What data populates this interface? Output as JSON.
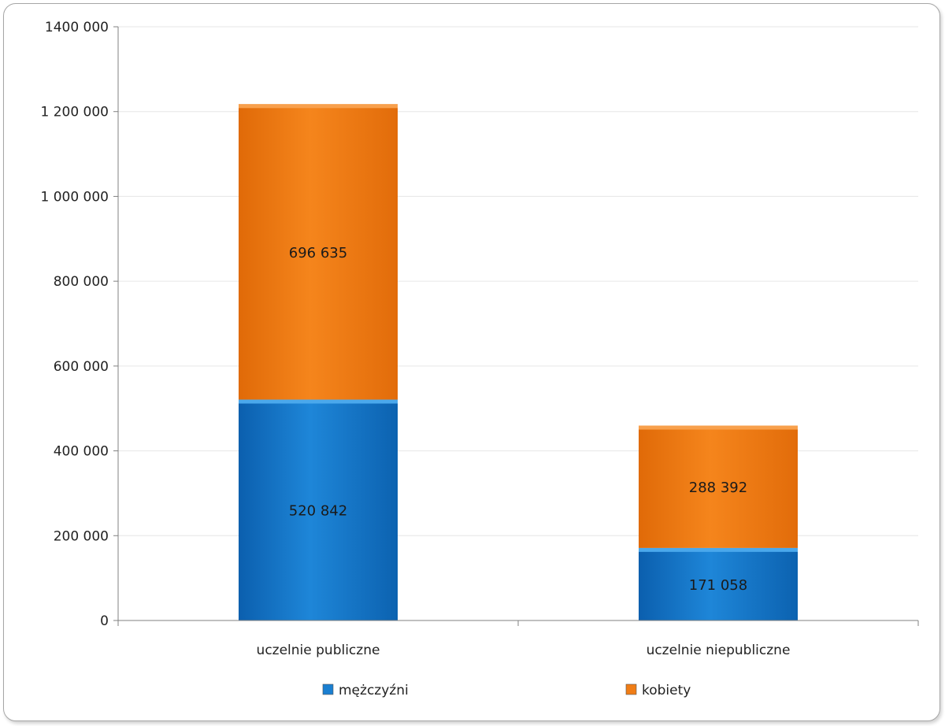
{
  "chart_data": {
    "type": "bar",
    "stacked": true,
    "categories": [
      "uczelnie publiczne",
      "uczelnie niepubliczne"
    ],
    "series": [
      {
        "name": "mężczyźni",
        "values": [
          520842,
          171058
        ],
        "labels": [
          "520 842",
          "171 058"
        ],
        "color": "#1a7fd1"
      },
      {
        "name": "kobiety",
        "values": [
          696635,
          288392
        ],
        "labels": [
          "696 635",
          "288 392"
        ],
        "color": "#f07d16"
      }
    ],
    "ylim": [
      0,
      1400000
    ],
    "yticks": [
      0,
      200000,
      400000,
      600000,
      800000,
      1000000,
      1200000,
      1400000
    ],
    "ytick_labels": [
      "0",
      "200 000",
      "400 000",
      "600 000",
      "800 000",
      "1 000 000",
      "1 200 000",
      "1400 000"
    ],
    "grid": true,
    "legend_position": "bottom"
  }
}
